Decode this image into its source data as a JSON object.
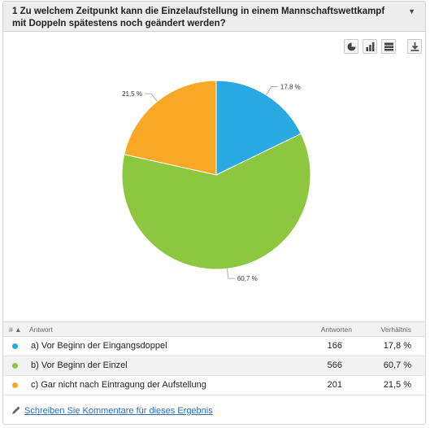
{
  "question": {
    "title": "1 Zu welchem Zeitpunkt kann die Einzelaufstellung in einem Mannschaftswettkampf mit Doppeln spätestens noch geändert werden?",
    "toggle_icon": "caret-down-icon"
  },
  "toolbar": {
    "icons": [
      "pie-chart-icon",
      "bar-chart-icon",
      "table-icon",
      "download-icon"
    ]
  },
  "chart_data": {
    "type": "pie",
    "categories": [
      "a) Vor Beginn der Eingangsdoppel",
      "b) Vor Beginn der Einzel",
      "c) Gar nicht nach Eintragung der Aufstellung"
    ],
    "values": [
      17.8,
      60.7,
      21.5
    ],
    "labels": [
      "17,8 %",
      "60,7 %",
      "21,5 %"
    ],
    "colors": [
      "#29a9e1",
      "#8dc63f",
      "#f9a825"
    ]
  },
  "table": {
    "headers": {
      "index": "#",
      "answer": "Antwort",
      "count": "Antworten",
      "ratio": "Verhältnis"
    },
    "rows": [
      {
        "label": "a) Vor Beginn der Eingangsdoppel",
        "count": "166",
        "ratio": "17,8 %",
        "color": "#29a9e1"
      },
      {
        "label": "b) Vor Beginn der Einzel",
        "count": "566",
        "ratio": "60,7 %",
        "color": "#8dc63f"
      },
      {
        "label": "c) Gar nicht nach Eintragung der Aufstellung",
        "count": "201",
        "ratio": "21,5 %",
        "color": "#f9a825"
      }
    ]
  },
  "comment": {
    "label": "Schreiben Sie Kommentare für dieses Ergebnis",
    "icon": "pencil-icon"
  }
}
